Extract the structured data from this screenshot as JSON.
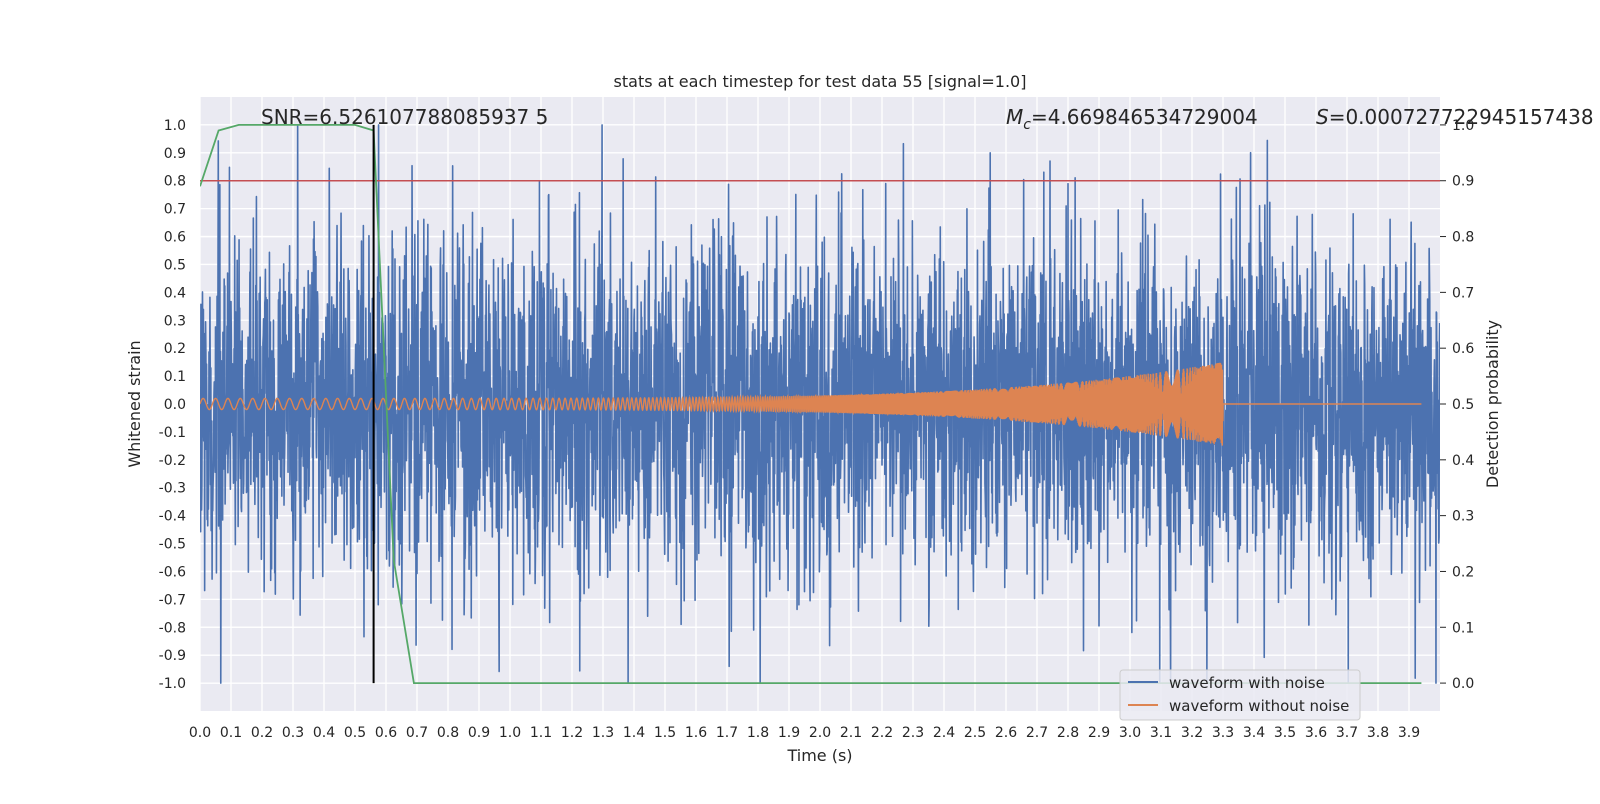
{
  "chart_data": {
    "type": "line",
    "title": "stats at each timestep for test data 55 [signal=1.0]",
    "xlabel": "Time (s)",
    "ylabel": "Whitened strain",
    "y2label": "Detection probability",
    "xlim": [
      0.0,
      4.0
    ],
    "ylim": [
      -1.1,
      1.1
    ],
    "y2lim": [
      -0.05,
      1.05
    ],
    "x_ticks": [
      "0.0",
      "0.1",
      "0.2",
      "0.3",
      "0.4",
      "0.5",
      "0.6",
      "0.7",
      "0.8",
      "0.9",
      "1.0",
      "1.1",
      "1.2",
      "1.3",
      "1.4",
      "1.5",
      "1.6",
      "1.7",
      "1.8",
      "1.9",
      "2.0",
      "2.1",
      "2.2",
      "2.3",
      "2.4",
      "2.5",
      "2.6",
      "2.7",
      "2.8",
      "2.9",
      "3.0",
      "3.1",
      "3.2",
      "3.3",
      "3.4",
      "3.5",
      "3.6",
      "3.7",
      "3.8",
      "3.9"
    ],
    "y_ticks": [
      "1.0",
      "0.9",
      "0.8",
      "0.7",
      "0.6",
      "0.5",
      "0.4",
      "0.3",
      "0.2",
      "0.1",
      "0.0",
      "-0.1",
      "-0.2",
      "-0.3",
      "-0.4",
      "-0.5",
      "-0.6",
      "-0.7",
      "-0.8",
      "-0.9",
      "-1.0"
    ],
    "y2_ticks": [
      "1.0",
      "0.9",
      "0.8",
      "0.7",
      "0.6",
      "0.5",
      "0.4",
      "0.3",
      "0.2",
      "0.1",
      "0.0"
    ],
    "annotations": {
      "snr": "SNR=6.526107788085937 5",
      "mc_symbol": "M",
      "mc_sub": "c",
      "mc_value": "=4.669846534729004",
      "s_symbol": "S",
      "s_value": "=0.000727722945157438"
    },
    "threshold": {
      "y2": 0.9,
      "color": "#c44e52"
    },
    "marker": {
      "x": 0.56,
      "color": "#000000"
    },
    "legend": {
      "position": "lower-right",
      "entries": [
        {
          "label": "waveform with noise",
          "color": "#4c72b0"
        },
        {
          "label": "waveform without noise",
          "color": "#dd8452"
        }
      ]
    },
    "series": [
      {
        "name": "waveform with noise",
        "color": "#4c72b0",
        "seed": 55,
        "duration": 4.0,
        "noise_amp": 0.3
      },
      {
        "name": "waveform without noise",
        "color": "#dd8452",
        "start_amp": 0.02,
        "end_amp": 0.15,
        "merger_time": 3.3,
        "start_freq": 25,
        "end_freq": 160
      },
      {
        "name": "detection probability",
        "color": "#55a868",
        "x": [
          0.0,
          0.06,
          0.125,
          0.25,
          0.5,
          0.56,
          0.625,
          0.69,
          0.75,
          1.0,
          1.5,
          2.0,
          2.5,
          3.0,
          3.5,
          3.94
        ],
        "values": [
          0.89,
          0.99,
          1.0,
          1.0,
          1.0,
          0.99,
          0.22,
          0.0,
          0.0,
          0.0,
          0.0,
          0.0,
          0.0,
          0.0,
          0.0,
          0.0
        ]
      }
    ]
  }
}
